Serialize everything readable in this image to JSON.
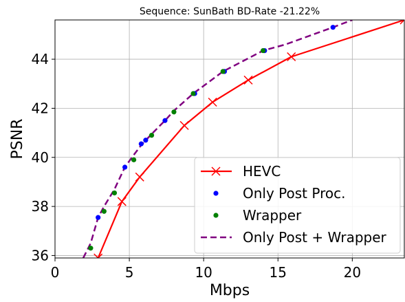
{
  "chart_data": {
    "type": "line",
    "title": "Sequence: SunBath  BD-Rate -21.22%",
    "xlabel": "Mbps",
    "ylabel": "PSNR",
    "xlim": [
      0,
      23.5
    ],
    "ylim": [
      35.9,
      45.6
    ],
    "xticks": [
      0,
      5,
      10,
      15,
      20
    ],
    "yticks": [
      36,
      38,
      40,
      42,
      44
    ],
    "grid": true,
    "legend_position": "lower-right",
    "series": [
      {
        "name": "HEVC",
        "kind": "line-marker",
        "marker": "x",
        "color": "#ff0000",
        "x": [
          2.9,
          4.5,
          5.7,
          8.7,
          10.6,
          13.0,
          15.9,
          23.5
        ],
        "y": [
          35.9,
          38.2,
          39.2,
          41.3,
          42.25,
          43.15,
          44.1,
          45.6
        ]
      },
      {
        "name": "Only Post Proc.",
        "kind": "scatter",
        "color": "#0000ff",
        "x": [
          2.9,
          4.7,
          5.8,
          6.1,
          7.4,
          9.4,
          11.4,
          14.1,
          18.7
        ],
        "y": [
          37.55,
          39.6,
          40.55,
          40.7,
          41.5,
          42.6,
          43.5,
          44.35,
          45.3
        ]
      },
      {
        "name": "Wrapper",
        "kind": "scatter",
        "color": "#008000",
        "x": [
          2.4,
          3.3,
          4.0,
          5.3,
          6.5,
          8.0,
          9.3,
          11.3,
          14.0
        ],
        "y": [
          36.3,
          37.8,
          38.55,
          39.9,
          40.9,
          41.85,
          42.6,
          43.5,
          44.35
        ]
      },
      {
        "name": "Only Post + Wrapper",
        "kind": "dashed-line",
        "color": "#800080",
        "x": [
          1.9,
          2.4,
          2.9,
          3.3,
          4.0,
          4.7,
          5.3,
          5.8,
          6.5,
          7.4,
          8.0,
          9.3,
          11.3,
          14.0,
          15.5,
          18.7,
          20.0
        ],
        "y": [
          35.9,
          36.5,
          37.55,
          38.0,
          38.7,
          39.6,
          40.1,
          40.5,
          40.95,
          41.5,
          41.9,
          42.6,
          43.5,
          44.35,
          44.6,
          45.3,
          45.6
        ]
      }
    ]
  }
}
